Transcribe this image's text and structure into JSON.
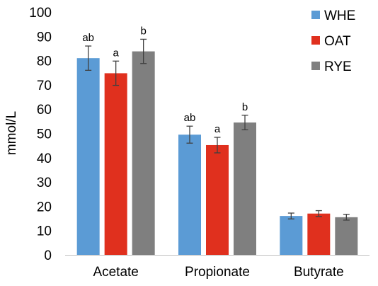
{
  "chart_data": {
    "type": "bar",
    "categories": [
      "Acetate",
      "Propionate",
      "Butyrate"
    ],
    "series": [
      {
        "name": "WHE",
        "color": "#5b9bd5",
        "values": [
          81,
          49.5,
          16
        ],
        "errors": [
          5,
          3.5,
          1.2
        ],
        "labels": [
          "ab",
          "ab",
          ""
        ]
      },
      {
        "name": "OAT",
        "color": "#e0301e",
        "values": [
          74.8,
          45.2,
          17
        ],
        "errors": [
          5,
          3.2,
          1.2
        ],
        "labels": [
          "a",
          "a",
          ""
        ]
      },
      {
        "name": "RYE",
        "color": "#7f7f7f",
        "values": [
          83.8,
          54.5,
          15.5
        ],
        "errors": [
          5,
          3,
          1.2
        ],
        "labels": [
          "b",
          "b",
          ""
        ]
      }
    ],
    "ylabel": "mmol/L",
    "xlabel": "",
    "ylim": [
      0,
      100
    ],
    "yticks": [
      0,
      10,
      20,
      30,
      40,
      50,
      60,
      70,
      80,
      90,
      100
    ],
    "grid": false,
    "legend": "top-right"
  }
}
